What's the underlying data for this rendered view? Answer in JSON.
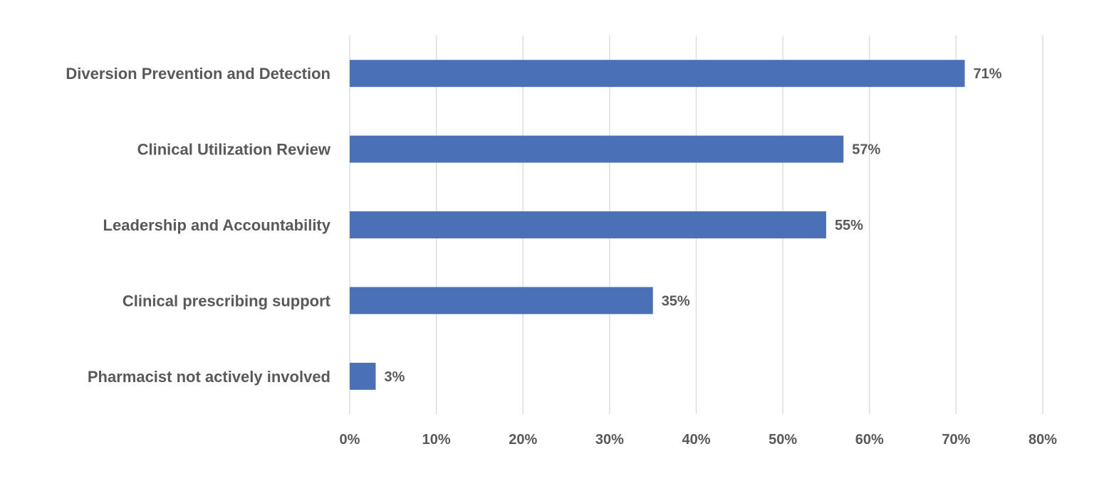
{
  "chart_data": {
    "type": "bar",
    "orientation": "horizontal",
    "title": "",
    "xlabel": "",
    "ylabel": "",
    "categories": [
      "Diversion Prevention and Detection",
      "Clinical Utilization Review",
      "Leadership and Accountability",
      "Clinical prescribing support",
      "Pharmacist not actively involved"
    ],
    "values": [
      71,
      57,
      55,
      35,
      3
    ],
    "data_labels": [
      "71%",
      "57%",
      "55%",
      "35%",
      "3%"
    ],
    "xlim": [
      0,
      80
    ],
    "x_ticks": [
      0,
      10,
      20,
      30,
      40,
      50,
      60,
      70,
      80
    ],
    "x_tick_labels": [
      "0%",
      "10%",
      "20%",
      "30%",
      "40%",
      "50%",
      "60%",
      "70%",
      "80%"
    ],
    "grid": "vertical",
    "legend": "none",
    "bar_color": "#4a71b7",
    "grid_color": "#d9d9d9"
  }
}
